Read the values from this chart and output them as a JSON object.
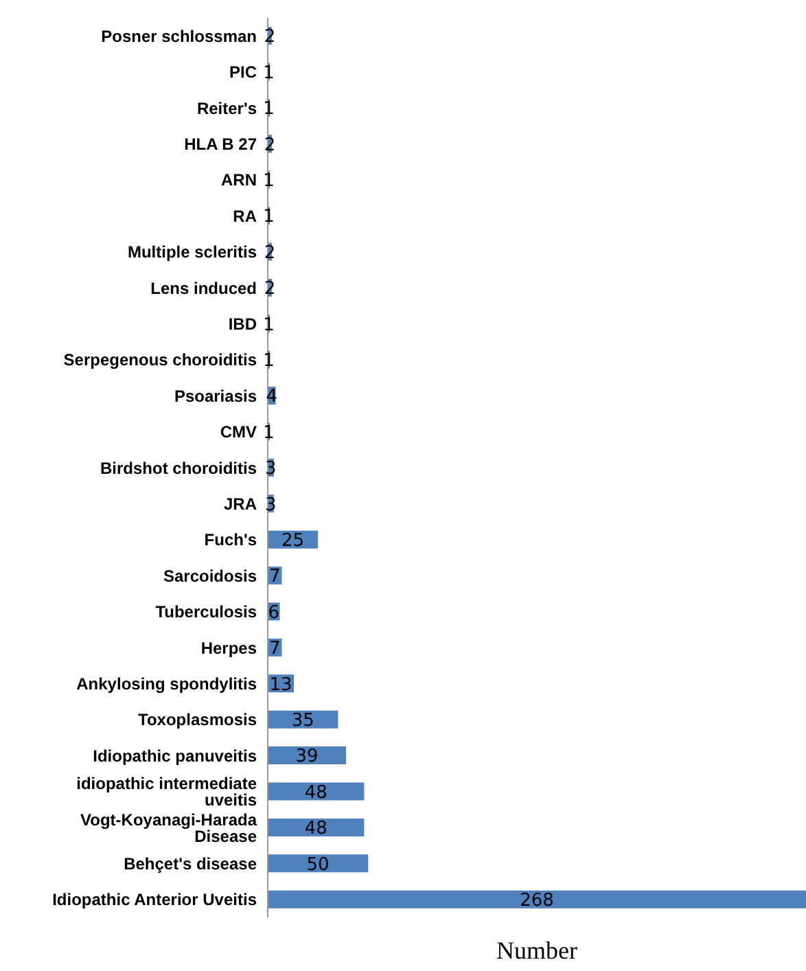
{
  "chart_data": {
    "type": "bar",
    "orientation": "horizontal",
    "xlabel": "Number",
    "categories": [
      "Posner schlossman",
      "PIC",
      "Reiter's",
      "HLA B 27",
      "ARN",
      "RA",
      "Multiple scleritis",
      "Lens induced",
      "IBD",
      "Serpegenous choroiditis",
      "Psoariasis",
      "CMV",
      "Birdshot choroiditis",
      "JRA",
      "Fuch's",
      "Sarcoidosis",
      "Tuberculosis",
      "Herpes",
      "Ankylosing spondylitis",
      "Toxoplasmosis",
      "Idiopathic panuveitis",
      "idiopathic intermediate uveitis",
      "Vogt-Koyanagi-Harada Disease",
      "Behçet's disease",
      "Idiopathic Anterior Uveitis"
    ],
    "values": [
      2,
      1,
      1,
      2,
      1,
      1,
      2,
      2,
      1,
      1,
      4,
      1,
      3,
      3,
      25,
      7,
      6,
      7,
      13,
      35,
      39,
      48,
      48,
      50,
      268
    ],
    "color": "#4f81bd",
    "xlim": [
      0,
      268
    ],
    "tick_labels": "y",
    "data_labels": true
  }
}
